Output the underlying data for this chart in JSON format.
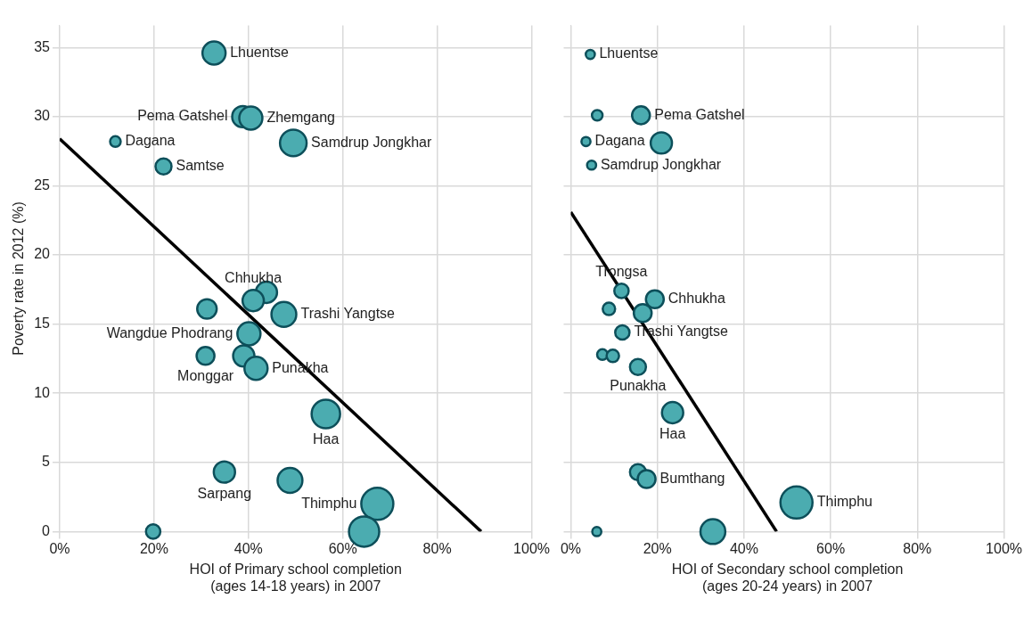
{
  "chart_data": [
    {
      "type": "bubble",
      "xlabel": "HOI of Primary school completion\n(ages 14-18 years) in 2007",
      "ylabel": "Poverty rate in 2012 (%)",
      "xlim": [
        0,
        100
      ],
      "ylim": [
        0,
        36.6
      ],
      "xticks": [
        {
          "value": 0,
          "label": "0%"
        },
        {
          "value": 20,
          "label": "20%"
        },
        {
          "value": 40,
          "label": "40%"
        },
        {
          "value": 60,
          "label": "60%"
        },
        {
          "value": 80,
          "label": "80%"
        },
        {
          "value": 100,
          "label": "100%"
        }
      ],
      "yticks": [
        0,
        5,
        10,
        15,
        20,
        25,
        30,
        35
      ],
      "grid": true,
      "legend": false,
      "series": [
        {
          "color": "#4bacb0",
          "x": [
            32.7,
            38.8,
            40.5,
            49.5,
            11.8,
            22.0,
            43.8,
            41.0,
            31.2,
            47.5,
            40.1,
            30.9,
            39.0,
            41.6,
            56.4,
            34.9,
            48.8,
            67.3,
            64.5,
            19.8
          ],
          "values": [
            34.6,
            30.0,
            29.9,
            28.1,
            28.2,
            26.4,
            17.3,
            16.7,
            16.1,
            15.7,
            14.3,
            12.7,
            12.7,
            11.8,
            8.5,
            4.3,
            3.7,
            2.0,
            0,
            0
          ],
          "sizes": [
            0.52,
            0.44,
            0.52,
            0.69,
            0.11,
            0.25,
            0.44,
            0.44,
            0.37,
            0.6,
            0.52,
            0.31,
            0.44,
            0.52,
            0.79,
            0.44,
            0.6,
            1,
            0.89,
            0.2
          ]
        },
        {
          "type": "line",
          "color": "#000000",
          "x": [
            0,
            89.3
          ],
          "values": [
            28.4,
            0
          ]
        }
      ],
      "annotations": [
        {
          "text": "Lhuentse",
          "x": 32.7,
          "y": 34.6
        },
        {
          "text": "Pema Gatshel",
          "x": 38.8,
          "y": 30.0
        },
        {
          "text": "Zhemgang",
          "x": 40.5,
          "y": 29.9
        },
        {
          "text": "Samdrup Jongkhar",
          "x": 49.5,
          "y": 28.1
        },
        {
          "text": "Dagana",
          "x": 11.8,
          "y": 28.2
        },
        {
          "text": "Samtse",
          "x": 22.0,
          "y": 26.4
        },
        {
          "text": "Chhukha",
          "x": 41.0,
          "y": 16.7
        },
        {
          "text": "Trashi Yangtse",
          "x": 47.5,
          "y": 15.7
        },
        {
          "text": "Wangdue Phodrang",
          "x": 40.1,
          "y": 14.3
        },
        {
          "text": "Monggar",
          "x": 30.9,
          "y": 12.7
        },
        {
          "text": "Punakha",
          "x": 41.6,
          "y": 11.8
        },
        {
          "text": "Haa",
          "x": 56.4,
          "y": 8.5
        },
        {
          "text": "Sarpang",
          "x": 34.9,
          "y": 4.3
        },
        {
          "text": "Thimphu",
          "x": 67.3,
          "y": 2.0
        }
      ]
    },
    {
      "type": "bubble",
      "xlabel": "HOI of Secondary school completion\n(ages 20-24 years) in 2007",
      "xlim": [
        0,
        100
      ],
      "ylim": [
        0,
        36.6
      ],
      "xticks": [
        {
          "value": 0,
          "label": "0%"
        },
        {
          "value": 20,
          "label": "20%"
        },
        {
          "value": 40,
          "label": "40%"
        },
        {
          "value": 60,
          "label": "60%"
        },
        {
          "value": 80,
          "label": "80%"
        },
        {
          "value": 100,
          "label": "100%"
        }
      ],
      "yticks": [
        0,
        5,
        10,
        15,
        20,
        25,
        30,
        35
      ],
      "tick_labels": "x",
      "grid": true,
      "legend": false,
      "series": [
        {
          "color": "#4bacb0",
          "x": [
            4.5,
            6.1,
            16.2,
            3.5,
            20.9,
            4.8,
            11.7,
            19.4,
            8.8,
            16.6,
            11.9,
            7.3,
            9.7,
            15.5,
            23.5,
            15.5,
            17.5,
            52.1,
            32.8,
            6.0
          ],
          "values": [
            34.5,
            30.1,
            30.1,
            28.2,
            28.1,
            26.5,
            17.4,
            16.8,
            16.1,
            15.8,
            14.4,
            12.8,
            12.7,
            11.9,
            8.6,
            4.3,
            3.8,
            2.1,
            0,
            0
          ],
          "sizes": [
            0.08,
            0.11,
            0.31,
            0.08,
            0.44,
            0.08,
            0.2,
            0.31,
            0.15,
            0.31,
            0.2,
            0.11,
            0.15,
            0.25,
            0.44,
            0.25,
            0.31,
            1,
            0.6,
            0.08
          ]
        },
        {
          "type": "line",
          "color": "#000000",
          "x": [
            0,
            47.5
          ],
          "values": [
            23.1,
            0
          ]
        }
      ],
      "annotations": [
        {
          "text": "Lhuentse",
          "x": 4.5,
          "y": 34.5
        },
        {
          "text": "Pema Gatshel",
          "x": 16.2,
          "y": 30.1
        },
        {
          "text": "Dagana",
          "x": 3.5,
          "y": 28.2
        },
        {
          "text": "Samdrup Jongkhar",
          "x": 4.8,
          "y": 26.5
        },
        {
          "text": "Trongsa",
          "x": 11.7,
          "y": 17.4
        },
        {
          "text": "Chhukha",
          "x": 19.4,
          "y": 16.8
        },
        {
          "text": "Trashi Yangtse",
          "x": 11.9,
          "y": 14.4
        },
        {
          "text": "Punakha",
          "x": 15.5,
          "y": 11.9
        },
        {
          "text": "Haa",
          "x": 23.5,
          "y": 8.6
        },
        {
          "text": "Bumthang",
          "x": 17.5,
          "y": 3.8
        },
        {
          "text": "Thimphu",
          "x": 52.1,
          "y": 2.1
        }
      ]
    }
  ]
}
